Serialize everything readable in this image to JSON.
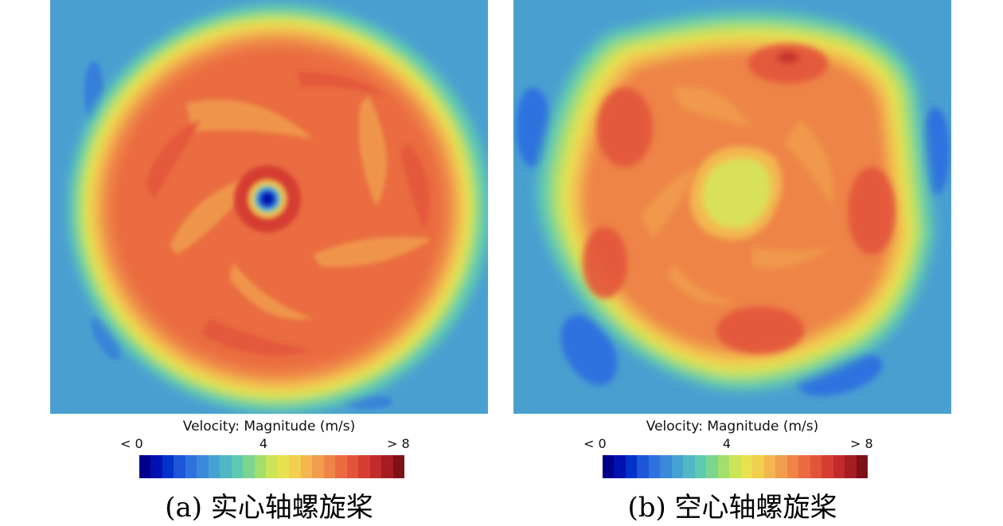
{
  "colors": {
    "background": "#4a9fd1",
    "scale": [
      "#00008a",
      "#0012b0",
      "#0033cc",
      "#1d56d9",
      "#2f72df",
      "#3a8ad9",
      "#46a2d3",
      "#4fb8c4",
      "#5fc9b0",
      "#7bd58f",
      "#a3df6c",
      "#cce457",
      "#e8e250",
      "#f2cf4e",
      "#f3b74f",
      "#f19d4d",
      "#ee8447",
      "#ea6c40",
      "#e3553a",
      "#d63e33",
      "#c22a2c",
      "#a51c22",
      "#7e1018"
    ]
  },
  "panels": [
    {
      "legend_title": "Velocity: Magnitude (m/s)",
      "tick_min": "< 0",
      "tick_mid": "4",
      "tick_max": "> 8",
      "caption": "(a) 实心轴螺旋桨"
    },
    {
      "legend_title": "Velocity: Magnitude (m/s)",
      "tick_min": "< 0",
      "tick_mid": "4",
      "tick_max": "> 8",
      "caption": "(b) 空心轴螺旋桨"
    }
  ]
}
